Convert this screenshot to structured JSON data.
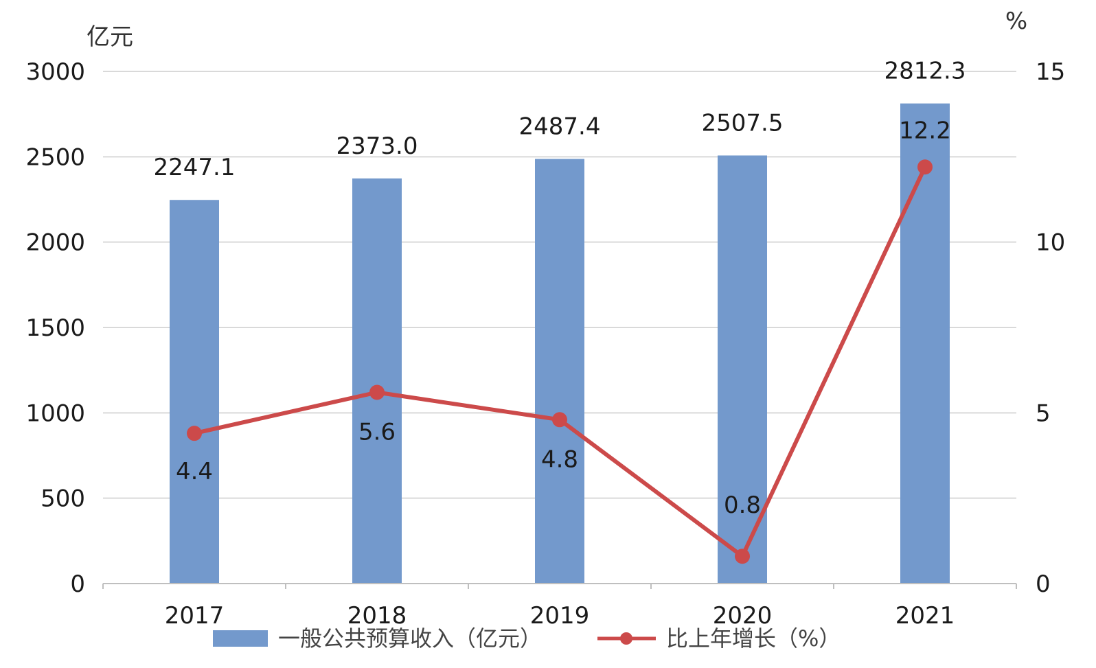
{
  "chart_data": {
    "type": "bar+line",
    "categories": [
      "2017",
      "2018",
      "2019",
      "2020",
      "2021"
    ],
    "series": [
      {
        "name": "一般公共预算收入（亿元）",
        "type": "bar",
        "axis": "left",
        "values": [
          2247.1,
          2373.0,
          2487.4,
          2507.5,
          2812.3
        ],
        "labels": [
          "2247.1",
          "2373.0",
          "2487.4",
          "2507.5",
          "2812.3"
        ],
        "color": "#7399cc"
      },
      {
        "name": "比上年增长（%）",
        "type": "line",
        "axis": "right",
        "values": [
          4.4,
          5.6,
          4.8,
          0.8,
          12.2
        ],
        "labels": [
          "4.4",
          "5.6",
          "4.8",
          "0.8",
          "12.2"
        ],
        "color": "#cc4a4a"
      }
    ],
    "y_left": {
      "unit": "亿元",
      "ylim": [
        0,
        3000
      ],
      "ticks": [
        "0",
        "500",
        "1000",
        "1500",
        "2000",
        "2500",
        "3000"
      ]
    },
    "y_right": {
      "unit": "%",
      "ylim": [
        0,
        15
      ],
      "ticks": [
        "0",
        "5",
        "10",
        "15"
      ]
    },
    "grid": true,
    "legend_position": "bottom"
  }
}
